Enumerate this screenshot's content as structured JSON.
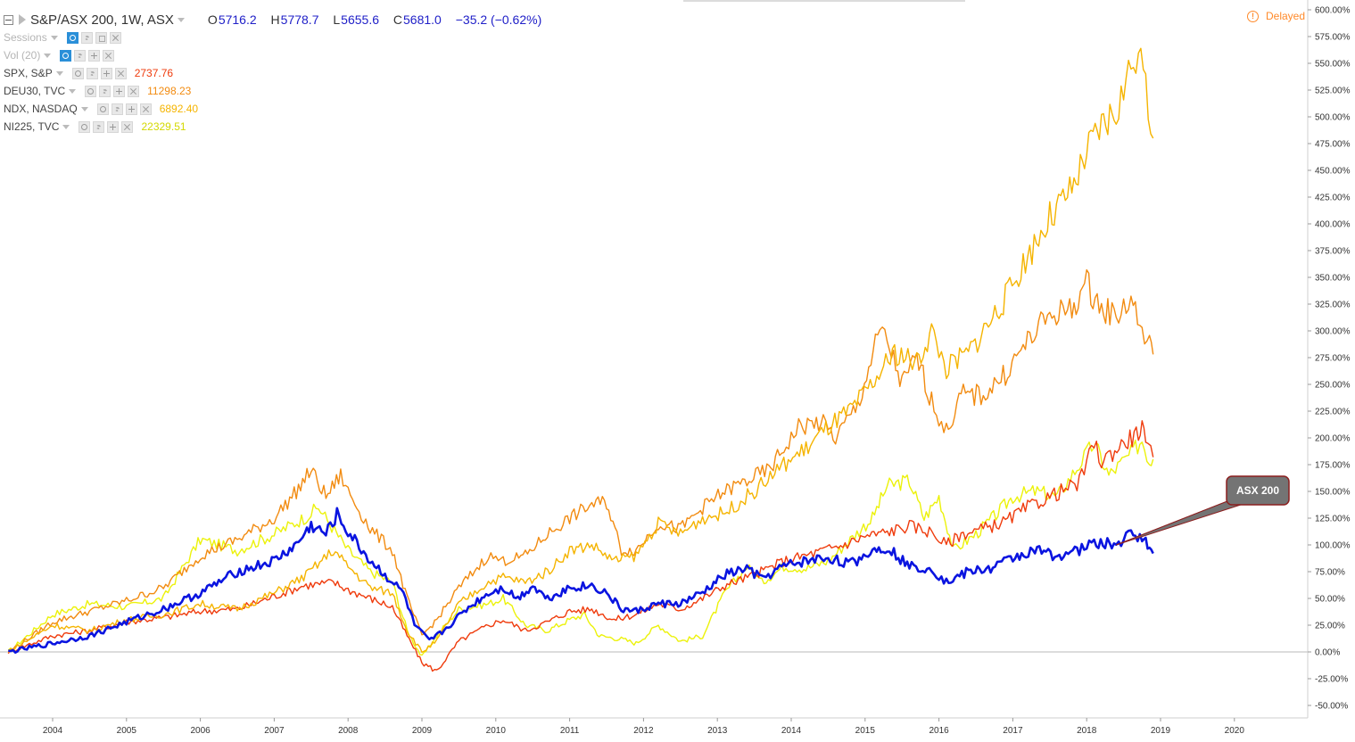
{
  "header": {
    "symbol": "S&P/ASX 200, 1W, ASX",
    "open_k": "O",
    "open": "5716.2",
    "high_k": "H",
    "high": "5778.7",
    "low_k": "L",
    "low": "5655.6",
    "close_k": "C",
    "close": "5681.0",
    "change": "−35.2 (−0.62%)",
    "delayed": "Delayed"
  },
  "studies": [
    {
      "label": "Sessions",
      "value": ""
    },
    {
      "label": "Vol (20)",
      "value": ""
    }
  ],
  "compare": [
    {
      "label": "SPX, S&P",
      "value": "2737.76",
      "color": "#ef3b0c"
    },
    {
      "label": "DEU30, TVC",
      "value": "11298.23",
      "color": "#f28b10"
    },
    {
      "label": "NDX, NASDAQ",
      "value": "6892.40",
      "color": "#f5b400"
    },
    {
      "label": "NI225, TVC",
      "value": "22329.51",
      "color": "#d4d800"
    }
  ],
  "colors": {
    "asx": "#0a14e0",
    "spx": "#ef3b0c",
    "deu": "#f28b10",
    "ndx": "#f5b400",
    "ni": "#ecf20a",
    "callout": "#747474",
    "callout_border": "#8b1f1f"
  },
  "chart_data": {
    "type": "line",
    "y_unit": "% change",
    "ylim": [
      -50,
      600
    ],
    "y_ticks": [
      "600.00%",
      "575.00%",
      "550.00%",
      "525.00%",
      "500.00%",
      "475.00%",
      "450.00%",
      "425.00%",
      "400.00%",
      "375.00%",
      "350.00%",
      "325.00%",
      "300.00%",
      "275.00%",
      "250.00%",
      "225.00%",
      "200.00%",
      "175.00%",
      "150.00%",
      "125.00%",
      "100.00%",
      "75.00%",
      "50.00%",
      "25.00%",
      "0.00%",
      "-25.00%",
      "-50.00%"
    ],
    "x_ticks": [
      "2004",
      "2005",
      "2006",
      "2007",
      "2008",
      "2009",
      "2010",
      "2011",
      "2012",
      "2013",
      "2014",
      "2015",
      "2016",
      "2017",
      "2018",
      "2019",
      "2020"
    ],
    "annotation": "ASX 200",
    "series": [
      {
        "name": "ASX 200",
        "key": "asx",
        "width": 2.6,
        "points": [
          [
            2003.4,
            0
          ],
          [
            2004,
            8
          ],
          [
            2004.5,
            15
          ],
          [
            2005,
            28
          ],
          [
            2005.5,
            40
          ],
          [
            2006,
            55
          ],
          [
            2006.5,
            75
          ],
          [
            2007,
            85
          ],
          [
            2007.3,
            100
          ],
          [
            2007.5,
            118
          ],
          [
            2007.7,
            110
          ],
          [
            2007.85,
            128
          ],
          [
            2008,
            112
          ],
          [
            2008.3,
            85
          ],
          [
            2008.5,
            72
          ],
          [
            2008.75,
            55
          ],
          [
            2008.9,
            25
          ],
          [
            2009.1,
            10
          ],
          [
            2009.3,
            20
          ],
          [
            2009.6,
            40
          ],
          [
            2009.9,
            55
          ],
          [
            2010.1,
            60
          ],
          [
            2010.3,
            50
          ],
          [
            2010.5,
            62
          ],
          [
            2010.7,
            50
          ],
          [
            2011,
            60
          ],
          [
            2011.3,
            62
          ],
          [
            2011.5,
            55
          ],
          [
            2011.7,
            40
          ],
          [
            2011.9,
            38
          ],
          [
            2012.2,
            45
          ],
          [
            2012.5,
            45
          ],
          [
            2012.8,
            55
          ],
          [
            2013.1,
            72
          ],
          [
            2013.4,
            78
          ],
          [
            2013.6,
            68
          ],
          [
            2013.9,
            80
          ],
          [
            2014.2,
            85
          ],
          [
            2014.5,
            88
          ],
          [
            2014.8,
            82
          ],
          [
            2015.1,
            95
          ],
          [
            2015.3,
            98
          ],
          [
            2015.6,
            80
          ],
          [
            2015.9,
            78
          ],
          [
            2016.1,
            65
          ],
          [
            2016.4,
            75
          ],
          [
            2016.7,
            78
          ],
          [
            2017,
            88
          ],
          [
            2017.3,
            95
          ],
          [
            2017.6,
            90
          ],
          [
            2017.9,
            95
          ],
          [
            2018.1,
            102
          ],
          [
            2018.4,
            100
          ],
          [
            2018.6,
            110
          ],
          [
            2018.75,
            108
          ],
          [
            2018.8,
            102
          ],
          [
            2018.85,
            95
          ],
          [
            2018.9,
            92
          ]
        ]
      },
      {
        "name": "SPX, S&P",
        "key": "spx",
        "width": 1.4,
        "points": [
          [
            2003.4,
            0
          ],
          [
            2004,
            15
          ],
          [
            2004.5,
            20
          ],
          [
            2005,
            28
          ],
          [
            2005.5,
            32
          ],
          [
            2006,
            38
          ],
          [
            2006.5,
            40
          ],
          [
            2007,
            52
          ],
          [
            2007.4,
            62
          ],
          [
            2007.8,
            65
          ],
          [
            2008,
            58
          ],
          [
            2008.3,
            50
          ],
          [
            2008.6,
            42
          ],
          [
            2008.8,
            15
          ],
          [
            2009,
            -10
          ],
          [
            2009.2,
            -18
          ],
          [
            2009.5,
            10
          ],
          [
            2009.9,
            25
          ],
          [
            2010.1,
            30
          ],
          [
            2010.4,
            20
          ],
          [
            2010.7,
            28
          ],
          [
            2011,
            38
          ],
          [
            2011.3,
            40
          ],
          [
            2011.6,
            30
          ],
          [
            2011.9,
            35
          ],
          [
            2012.2,
            45
          ],
          [
            2012.5,
            40
          ],
          [
            2012.8,
            50
          ],
          [
            2013.1,
            62
          ],
          [
            2013.5,
            72
          ],
          [
            2013.9,
            85
          ],
          [
            2014.3,
            92
          ],
          [
            2014.7,
            100
          ],
          [
            2015,
            108
          ],
          [
            2015.3,
            112
          ],
          [
            2015.6,
            118
          ],
          [
            2015.9,
            112
          ],
          [
            2016.1,
            100
          ],
          [
            2016.3,
            110
          ],
          [
            2016.6,
            115
          ],
          [
            2016.9,
            122
          ],
          [
            2017.2,
            135
          ],
          [
            2017.5,
            145
          ],
          [
            2017.9,
            158
          ],
          [
            2018.1,
            195
          ],
          [
            2018.2,
            178
          ],
          [
            2018.5,
            195
          ],
          [
            2018.7,
            205
          ],
          [
            2018.75,
            212
          ],
          [
            2018.8,
            190
          ],
          [
            2018.9,
            182
          ]
        ]
      },
      {
        "name": "DEU30, TVC",
        "key": "deu",
        "width": 1.4,
        "points": [
          [
            2003.4,
            0
          ],
          [
            2004,
            28
          ],
          [
            2004.5,
            38
          ],
          [
            2005,
            48
          ],
          [
            2005.5,
            60
          ],
          [
            2006,
            90
          ],
          [
            2006.5,
            105
          ],
          [
            2007,
            125
          ],
          [
            2007.3,
            150
          ],
          [
            2007.5,
            170
          ],
          [
            2007.7,
            145
          ],
          [
            2007.9,
            165
          ],
          [
            2008,
            150
          ],
          [
            2008.3,
            115
          ],
          [
            2008.6,
            95
          ],
          [
            2008.8,
            50
          ],
          [
            2009,
            15
          ],
          [
            2009.2,
            30
          ],
          [
            2009.5,
            60
          ],
          [
            2009.9,
            90
          ],
          [
            2010.1,
            85
          ],
          [
            2010.4,
            90
          ],
          [
            2010.7,
            110
          ],
          [
            2011,
            125
          ],
          [
            2011.3,
            138
          ],
          [
            2011.5,
            140
          ],
          [
            2011.7,
            95
          ],
          [
            2011.9,
            95
          ],
          [
            2012.2,
            120
          ],
          [
            2012.5,
            115
          ],
          [
            2012.8,
            135
          ],
          [
            2013.1,
            150
          ],
          [
            2013.4,
            160
          ],
          [
            2013.7,
            170
          ],
          [
            2013.9,
            190
          ],
          [
            2014.1,
            210
          ],
          [
            2014.4,
            215
          ],
          [
            2014.6,
            200
          ],
          [
            2014.9,
            230
          ],
          [
            2015.2,
            300
          ],
          [
            2015.3,
            290
          ],
          [
            2015.5,
            250
          ],
          [
            2015.7,
            275
          ],
          [
            2015.9,
            235
          ],
          [
            2016.1,
            205
          ],
          [
            2016.3,
            240
          ],
          [
            2016.6,
            240
          ],
          [
            2016.9,
            260
          ],
          [
            2017.2,
            290
          ],
          [
            2017.5,
            315
          ],
          [
            2017.8,
            320
          ],
          [
            2018,
            345
          ],
          [
            2018.2,
            320
          ],
          [
            2018.4,
            315
          ],
          [
            2018.6,
            330
          ],
          [
            2018.75,
            300
          ],
          [
            2018.85,
            285
          ],
          [
            2018.9,
            278
          ]
        ]
      },
      {
        "name": "NDX, NASDAQ",
        "key": "ndx",
        "width": 1.4,
        "points": [
          [
            2003.4,
            0
          ],
          [
            2004,
            25
          ],
          [
            2004.5,
            20
          ],
          [
            2005,
            30
          ],
          [
            2005.5,
            35
          ],
          [
            2006,
            45
          ],
          [
            2006.5,
            40
          ],
          [
            2007,
            55
          ],
          [
            2007.4,
            70
          ],
          [
            2007.8,
            95
          ],
          [
            2008,
            80
          ],
          [
            2008.3,
            60
          ],
          [
            2008.6,
            55
          ],
          [
            2008.8,
            20
          ],
          [
            2009,
            0
          ],
          [
            2009.2,
            10
          ],
          [
            2009.5,
            45
          ],
          [
            2009.9,
            65
          ],
          [
            2010.1,
            70
          ],
          [
            2010.4,
            65
          ],
          [
            2010.7,
            75
          ],
          [
            2011,
            95
          ],
          [
            2011.3,
            100
          ],
          [
            2011.6,
            85
          ],
          [
            2011.9,
            90
          ],
          [
            2012.2,
            120
          ],
          [
            2012.5,
            110
          ],
          [
            2012.8,
            125
          ],
          [
            2013.1,
            130
          ],
          [
            2013.5,
            150
          ],
          [
            2013.9,
            175
          ],
          [
            2014.2,
            190
          ],
          [
            2014.5,
            210
          ],
          [
            2014.8,
            225
          ],
          [
            2015.1,
            250
          ],
          [
            2015.4,
            280
          ],
          [
            2015.7,
            270
          ],
          [
            2015.9,
            300
          ],
          [
            2016.1,
            265
          ],
          [
            2016.4,
            280
          ],
          [
            2016.7,
            310
          ],
          [
            2016.9,
            330
          ],
          [
            2017.2,
            370
          ],
          [
            2017.5,
            405
          ],
          [
            2017.8,
            430
          ],
          [
            2018,
            465
          ],
          [
            2018.2,
            490
          ],
          [
            2018.4,
            505
          ],
          [
            2018.6,
            545
          ],
          [
            2018.7,
            570
          ],
          [
            2018.8,
            520
          ],
          [
            2018.9,
            480
          ]
        ]
      },
      {
        "name": "NI225, TVC",
        "key": "ni",
        "width": 1.4,
        "points": [
          [
            2003.4,
            0
          ],
          [
            2004,
            35
          ],
          [
            2004.5,
            45
          ],
          [
            2005,
            42
          ],
          [
            2005.5,
            50
          ],
          [
            2006,
            105
          ],
          [
            2006.5,
            95
          ],
          [
            2007,
            110
          ],
          [
            2007.4,
            125
          ],
          [
            2007.6,
            135
          ],
          [
            2007.9,
            105
          ],
          [
            2008,
            95
          ],
          [
            2008.3,
            75
          ],
          [
            2008.6,
            65
          ],
          [
            2008.8,
            20
          ],
          [
            2009,
            -5
          ],
          [
            2009.2,
            15
          ],
          [
            2009.5,
            40
          ],
          [
            2009.9,
            45
          ],
          [
            2010.1,
            50
          ],
          [
            2010.4,
            25
          ],
          [
            2010.7,
            20
          ],
          [
            2011,
            30
          ],
          [
            2011.2,
            35
          ],
          [
            2011.4,
            15
          ],
          [
            2011.7,
            12
          ],
          [
            2011.9,
            8
          ],
          [
            2012.2,
            25
          ],
          [
            2012.5,
            10
          ],
          [
            2012.8,
            15
          ],
          [
            2013.1,
            55
          ],
          [
            2013.4,
            80
          ],
          [
            2013.6,
            65
          ],
          [
            2013.9,
            80
          ],
          [
            2014.2,
            78
          ],
          [
            2014.5,
            85
          ],
          [
            2014.8,
            105
          ],
          [
            2015.1,
            125
          ],
          [
            2015.3,
            155
          ],
          [
            2015.6,
            160
          ],
          [
            2015.8,
            125
          ],
          [
            2016,
            145
          ],
          [
            2016.2,
            95
          ],
          [
            2016.5,
            110
          ],
          [
            2016.8,
            130
          ],
          [
            2017,
            145
          ],
          [
            2017.3,
            150
          ],
          [
            2017.6,
            145
          ],
          [
            2017.9,
            175
          ],
          [
            2018.1,
            195
          ],
          [
            2018.3,
            165
          ],
          [
            2018.6,
            185
          ],
          [
            2018.75,
            198
          ],
          [
            2018.85,
            178
          ],
          [
            2018.9,
            180
          ]
        ]
      }
    ]
  }
}
